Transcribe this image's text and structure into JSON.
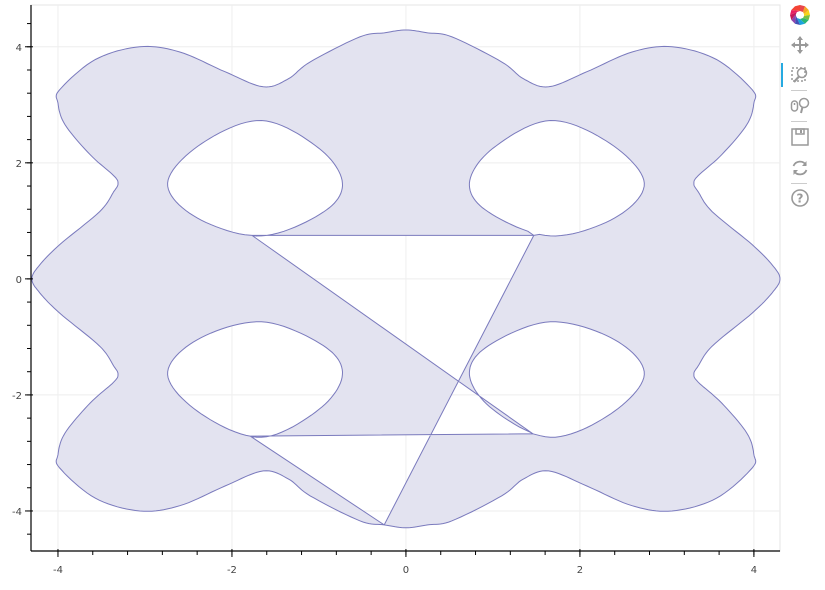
{
  "chart_data": {
    "type": "patch",
    "title": "",
    "xlabel": "",
    "ylabel": "",
    "xlim": [
      -4.31,
      4.3
    ],
    "ylim": [
      -4.69,
      4.72
    ],
    "grid": true,
    "x_ticks": [
      -4,
      -2,
      0,
      2,
      4
    ],
    "y_ticks": [
      -4,
      -2,
      0,
      2,
      4
    ],
    "x_tick_labels": [
      "-4",
      "-2",
      "0",
      "2",
      "4"
    ],
    "y_tick_labels": [
      "-4",
      "-2",
      "0",
      "2",
      "4"
    ],
    "minor_tick_step": 0.4,
    "fill_color": "#e3e3f0",
    "line_color": "#7a7abd",
    "outer": [
      [
        -0.25,
        -4.24
      ],
      [
        0,
        -4.29
      ],
      [
        0.25,
        -4.24
      ],
      [
        0.53,
        -4.17
      ],
      [
        1.1,
        -3.74
      ],
      [
        1.35,
        -3.45
      ],
      [
        1.64,
        -3.31
      ],
      [
        2.08,
        -3.57
      ],
      [
        2.6,
        -3.91
      ],
      [
        3.06,
        -4.0
      ],
      [
        3.57,
        -3.78
      ],
      [
        3.98,
        -3.26
      ],
      [
        4.0,
        -3.03
      ],
      [
        3.92,
        -2.66
      ],
      [
        3.63,
        -2.14
      ],
      [
        3.36,
        -1.78
      ],
      [
        3.31,
        -1.64
      ],
      [
        3.36,
        -1.5
      ],
      [
        3.52,
        -1.16
      ],
      [
        3.98,
        -0.59
      ],
      [
        4.21,
        -0.24
      ],
      [
        4.3,
        0
      ],
      [
        4.21,
        0.24
      ],
      [
        3.98,
        0.59
      ],
      [
        3.52,
        1.16
      ],
      [
        3.36,
        1.5
      ],
      [
        3.31,
        1.64
      ],
      [
        3.36,
        1.78
      ],
      [
        3.63,
        2.14
      ],
      [
        3.92,
        2.66
      ],
      [
        4.0,
        3.03
      ],
      [
        3.98,
        3.26
      ],
      [
        3.57,
        3.78
      ],
      [
        3.06,
        4.0
      ],
      [
        2.6,
        3.91
      ],
      [
        2.08,
        3.57
      ],
      [
        1.64,
        3.31
      ],
      [
        1.35,
        3.45
      ],
      [
        1.1,
        3.74
      ],
      [
        0.53,
        4.17
      ],
      [
        0.25,
        4.24
      ],
      [
        0,
        4.29
      ],
      [
        -0.25,
        4.24
      ],
      [
        -0.53,
        4.17
      ],
      [
        -1.1,
        3.74
      ],
      [
        -1.35,
        3.45
      ],
      [
        -1.64,
        3.31
      ],
      [
        -2.08,
        3.57
      ],
      [
        -2.6,
        3.91
      ],
      [
        -3.06,
        4.0
      ],
      [
        -3.57,
        3.78
      ],
      [
        -3.98,
        3.26
      ],
      [
        -4.0,
        3.03
      ],
      [
        -3.92,
        2.66
      ],
      [
        -3.63,
        2.14
      ],
      [
        -3.36,
        1.78
      ],
      [
        -3.31,
        1.64
      ],
      [
        -3.36,
        1.5
      ],
      [
        -3.52,
        1.16
      ],
      [
        -3.98,
        0.59
      ],
      [
        -4.21,
        0.24
      ],
      [
        -4.3,
        0
      ],
      [
        -4.21,
        -0.24
      ],
      [
        -3.98,
        -0.59
      ],
      [
        -3.52,
        -1.16
      ],
      [
        -3.36,
        -1.5
      ],
      [
        -3.31,
        -1.64
      ],
      [
        -3.36,
        -1.78
      ],
      [
        -3.63,
        -2.14
      ],
      [
        -3.92,
        -2.66
      ],
      [
        -4.0,
        -3.03
      ],
      [
        -3.98,
        -3.26
      ],
      [
        -3.57,
        -3.78
      ],
      [
        -3.06,
        -4.0
      ],
      [
        -2.6,
        -3.91
      ],
      [
        -2.08,
        -3.57
      ],
      [
        -1.64,
        -3.31
      ],
      [
        -1.35,
        -3.45
      ],
      [
        -1.1,
        -3.74
      ],
      [
        -0.53,
        -4.17
      ]
    ],
    "holes": [
      {
        "entry": [
          -1.79,
          -2.71
        ],
        "points": [
          [
            -2.74,
            -1.65
          ],
          [
            -2.35,
            -2.33
          ],
          [
            -1.66,
            -2.73
          ],
          [
            -1.0,
            -2.25
          ],
          [
            -0.73,
            -1.65
          ],
          [
            -0.95,
            -1.15
          ],
          [
            -1.66,
            -0.74
          ],
          [
            -2.4,
            -1.05
          ]
        ]
      },
      {
        "entry": [
          1.46,
          -2.67
        ],
        "points": [
          [
            2.74,
            -1.65
          ],
          [
            2.35,
            -2.33
          ],
          [
            1.66,
            -2.73
          ],
          [
            1.0,
            -2.25
          ],
          [
            0.73,
            -1.65
          ],
          [
            0.95,
            -1.15
          ],
          [
            1.66,
            -0.74
          ],
          [
            2.4,
            -1.05
          ]
        ]
      },
      {
        "entry": [
          -1.77,
          0.75
        ],
        "points": [
          [
            -2.74,
            1.65
          ],
          [
            -2.35,
            2.33
          ],
          [
            -1.66,
            2.73
          ],
          [
            -1.0,
            2.25
          ],
          [
            -0.73,
            1.65
          ],
          [
            -0.95,
            1.15
          ],
          [
            -1.66,
            0.74
          ],
          [
            -2.4,
            1.05
          ]
        ]
      },
      {
        "entry": [
          1.47,
          0.75
        ],
        "points": [
          [
            2.74,
            1.65
          ],
          [
            2.35,
            2.33
          ],
          [
            1.66,
            2.73
          ],
          [
            1.0,
            2.25
          ],
          [
            0.73,
            1.65
          ],
          [
            0.95,
            1.15
          ],
          [
            1.66,
            0.74
          ],
          [
            2.4,
            1.05
          ]
        ]
      }
    ]
  },
  "toolbar": {
    "tools": [
      {
        "name": "bokeh-logo-icon",
        "active": false
      },
      {
        "name": "pan-icon",
        "active": false
      },
      {
        "name": "box-zoom-icon",
        "active": true
      },
      {
        "name": "wheel-zoom-icon",
        "active": false
      },
      {
        "name": "save-icon",
        "active": false
      },
      {
        "name": "reset-icon",
        "active": false
      },
      {
        "name": "help-icon",
        "active": false
      }
    ],
    "active_color": "#26aae1"
  }
}
